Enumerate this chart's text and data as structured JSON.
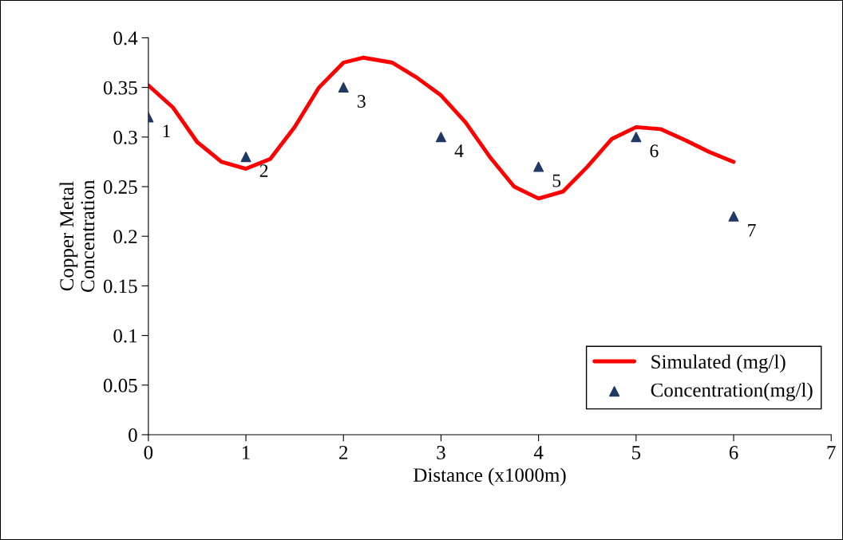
{
  "chart_data": {
    "type": "line",
    "xlabel": "Distance (x1000m)",
    "ylabel": "Copper Metal\nConcentration",
    "xlim": [
      0,
      7
    ],
    "xticks": [
      0,
      1,
      2,
      3,
      4,
      5,
      6,
      7
    ],
    "ylim": [
      0,
      0.4
    ],
    "yticks": [
      0,
      0.05,
      0.1,
      0.15,
      0.2,
      0.25,
      0.3,
      0.35,
      0.4
    ],
    "grid": false,
    "legend": "bottom right",
    "series": [
      {
        "name": "Simulated (mg/l)",
        "color": "#ff0000",
        "line_style": "solid",
        "marker": "none",
        "x": [
          0,
          0.25,
          0.5,
          0.75,
          1.0,
          1.25,
          1.5,
          1.75,
          2.0,
          2.2,
          2.5,
          2.75,
          3.0,
          3.25,
          3.5,
          3.75,
          4.0,
          4.25,
          4.5,
          4.75,
          5.0,
          5.25,
          5.5,
          5.75,
          6.0
        ],
        "values": [
          0.352,
          0.33,
          0.295,
          0.275,
          0.268,
          0.278,
          0.31,
          0.35,
          0.375,
          0.38,
          0.375,
          0.36,
          0.342,
          0.315,
          0.28,
          0.25,
          0.238,
          0.245,
          0.27,
          0.298,
          0.31,
          0.308,
          0.297,
          0.285,
          0.275
        ]
      },
      {
        "name": "Concentration(mg/l)",
        "type": "scatter",
        "color": "#1f3864",
        "marker": "triangle",
        "x": [
          0,
          1,
          2,
          3,
          4,
          5,
          6
        ],
        "values": [
          0.32,
          0.28,
          0.35,
          0.3,
          0.27,
          0.3,
          0.22
        ]
      }
    ],
    "annotations": [
      {
        "text": "1",
        "x": 0,
        "y": 0.32
      },
      {
        "text": "2",
        "x": 1,
        "y": 0.28
      },
      {
        "text": "3",
        "x": 2,
        "y": 0.35
      },
      {
        "text": "4",
        "x": 3,
        "y": 0.3
      },
      {
        "text": "5",
        "x": 4,
        "y": 0.27
      },
      {
        "text": "6",
        "x": 5,
        "y": 0.3
      },
      {
        "text": "7",
        "x": 6,
        "y": 0.22
      }
    ]
  }
}
